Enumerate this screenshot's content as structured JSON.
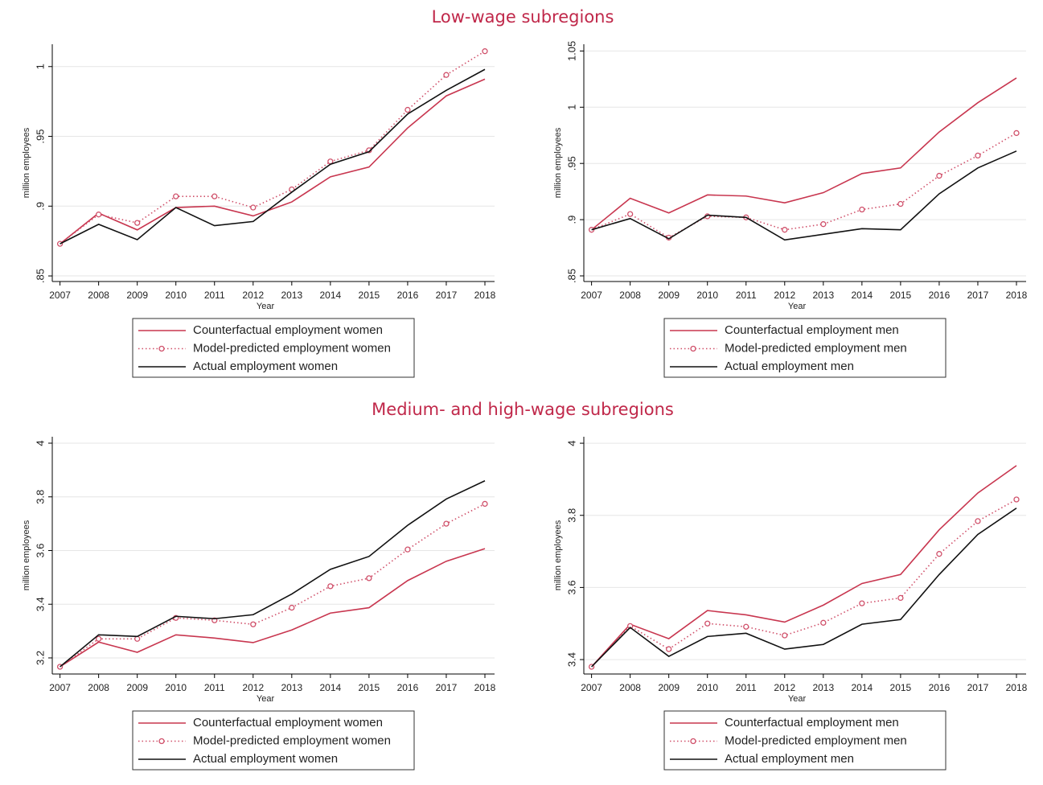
{
  "headings": [
    "Low-wage subregions",
    "Medium- and high-wage subregions"
  ],
  "chart_data": [
    {
      "type": "line",
      "xlabel": "Year",
      "ylabel": "million employees",
      "x": [
        2007,
        2008,
        2009,
        2010,
        2011,
        2012,
        2013,
        2014,
        2015,
        2016,
        2017,
        2018
      ],
      "xlim": [
        2006.8,
        2018.25
      ],
      "xticks": [
        2007,
        2008,
        2009,
        2010,
        2011,
        2012,
        2013,
        2014,
        2015,
        2016,
        2017,
        2018
      ],
      "ylim": [
        0.846,
        1.016
      ],
      "yticks": [
        {
          "value": 0.85,
          "label": ".85"
        },
        {
          "value": 0.9,
          "label": ".9"
        },
        {
          "value": 0.95,
          "label": ".95"
        },
        1
      ],
      "grid": true,
      "legend": "bottom",
      "series": [
        {
          "name": "Counterfactual employment women",
          "color": "#c8364f",
          "style": "solid",
          "marker": "none",
          "values": [
            0.873,
            0.895,
            0.883,
            0.899,
            0.9,
            0.893,
            0.903,
            0.921,
            0.928,
            0.956,
            0.979,
            0.991
          ]
        },
        {
          "name": "Model-predicted employment women",
          "color": "#d0506a",
          "style": "dotted",
          "marker": "circle",
          "values": [
            0.873,
            0.894,
            0.888,
            0.907,
            0.907,
            0.899,
            0.912,
            0.932,
            0.94,
            0.969,
            0.994,
            1.011
          ]
        },
        {
          "name": "Actual employment women",
          "color": "#111111",
          "style": "solid",
          "marker": "none",
          "values": [
            0.873,
            0.887,
            0.876,
            0.899,
            0.886,
            0.889,
            0.91,
            0.93,
            0.939,
            0.966,
            0.983,
            0.998
          ]
        }
      ]
    },
    {
      "type": "line",
      "xlabel": "Year",
      "ylabel": "million employees",
      "x": [
        2007,
        2008,
        2009,
        2010,
        2011,
        2012,
        2013,
        2014,
        2015,
        2016,
        2017,
        2018
      ],
      "xlim": [
        2006.8,
        2018.25
      ],
      "xticks": [
        2007,
        2008,
        2009,
        2010,
        2011,
        2012,
        2013,
        2014,
        2015,
        2016,
        2017,
        2018
      ],
      "ylim": [
        0.845,
        1.056
      ],
      "yticks": [
        {
          "value": 0.85,
          "label": ".85"
        },
        {
          "value": 0.9,
          "label": ".9"
        },
        {
          "value": 0.95,
          "label": ".95"
        },
        1,
        1.05
      ],
      "grid": true,
      "legend": "bottom",
      "series": [
        {
          "name": "Counterfactual employment men",
          "color": "#c8364f",
          "style": "solid",
          "marker": "none",
          "values": [
            0.891,
            0.919,
            0.906,
            0.922,
            0.921,
            0.915,
            0.924,
            0.941,
            0.946,
            0.978,
            1.004,
            1.026
          ]
        },
        {
          "name": "Model-predicted employment men",
          "color": "#d0506a",
          "style": "dotted",
          "marker": "circle",
          "values": [
            0.891,
            0.905,
            0.884,
            0.903,
            0.902,
            0.891,
            0.896,
            0.909,
            0.914,
            0.939,
            0.957,
            0.977
          ]
        },
        {
          "name": "Actual employment men",
          "color": "#111111",
          "style": "solid",
          "marker": "none",
          "values": [
            0.891,
            0.901,
            0.883,
            0.904,
            0.902,
            0.882,
            0.887,
            0.892,
            0.891,
            0.923,
            0.946,
            0.961
          ]
        }
      ]
    },
    {
      "type": "line",
      "xlabel": "Year",
      "ylabel": "million employees",
      "x": [
        2007,
        2008,
        2009,
        2010,
        2011,
        2012,
        2013,
        2014,
        2015,
        2016,
        2017,
        2018
      ],
      "xlim": [
        2006.8,
        2018.25
      ],
      "xticks": [
        2007,
        2008,
        2009,
        2010,
        2011,
        2012,
        2013,
        2014,
        2015,
        2016,
        2017,
        2018
      ],
      "ylim": [
        3.14,
        4.024
      ],
      "yticks": [
        3.2,
        3.4,
        3.6,
        3.8,
        4
      ],
      "grid": true,
      "legend": "bottom",
      "series": [
        {
          "name": "Counterfactual employment women",
          "color": "#c8364f",
          "style": "solid",
          "marker": "none",
          "values": [
            3.167,
            3.259,
            3.221,
            3.286,
            3.274,
            3.257,
            3.304,
            3.367,
            3.387,
            3.488,
            3.56,
            3.607
          ]
        },
        {
          "name": "Model-predicted employment women",
          "color": "#d0506a",
          "style": "dotted",
          "marker": "circle",
          "values": [
            3.167,
            3.271,
            3.271,
            3.349,
            3.34,
            3.325,
            3.387,
            3.467,
            3.497,
            3.604,
            3.7,
            3.774
          ]
        },
        {
          "name": "Actual employment women",
          "color": "#111111",
          "style": "solid",
          "marker": "none",
          "values": [
            3.167,
            3.286,
            3.28,
            3.355,
            3.346,
            3.361,
            3.438,
            3.53,
            3.578,
            3.694,
            3.792,
            3.86
          ]
        }
      ]
    },
    {
      "type": "line",
      "xlabel": "Year",
      "ylabel": "million employees",
      "x": [
        2007,
        2008,
        2009,
        2010,
        2011,
        2012,
        2013,
        2014,
        2015,
        2016,
        2017,
        2018
      ],
      "xlim": [
        2006.8,
        2018.25
      ],
      "xticks": [
        2007,
        2008,
        2009,
        2010,
        2011,
        2012,
        2013,
        2014,
        2015,
        2016,
        2017,
        2018
      ],
      "ylim": [
        3.36,
        4.018
      ],
      "yticks": [
        3.4,
        3.6,
        3.8,
        4
      ],
      "grid": true,
      "legend": "bottom",
      "series": [
        {
          "name": "Counterfactual employment men",
          "color": "#c8364f",
          "style": "solid",
          "marker": "none",
          "values": [
            3.38,
            3.498,
            3.458,
            3.536,
            3.524,
            3.504,
            3.551,
            3.611,
            3.636,
            3.76,
            3.862,
            3.938
          ]
        },
        {
          "name": "Model-predicted employment men",
          "color": "#d0506a",
          "style": "dotted",
          "marker": "circle",
          "values": [
            3.38,
            3.493,
            3.429,
            3.5,
            3.491,
            3.467,
            3.502,
            3.556,
            3.571,
            3.693,
            3.784,
            3.844
          ]
        },
        {
          "name": "Actual employment men",
          "color": "#111111",
          "style": "solid",
          "marker": "none",
          "values": [
            3.38,
            3.489,
            3.409,
            3.464,
            3.473,
            3.429,
            3.442,
            3.498,
            3.511,
            3.636,
            3.747,
            3.82
          ]
        }
      ]
    }
  ]
}
